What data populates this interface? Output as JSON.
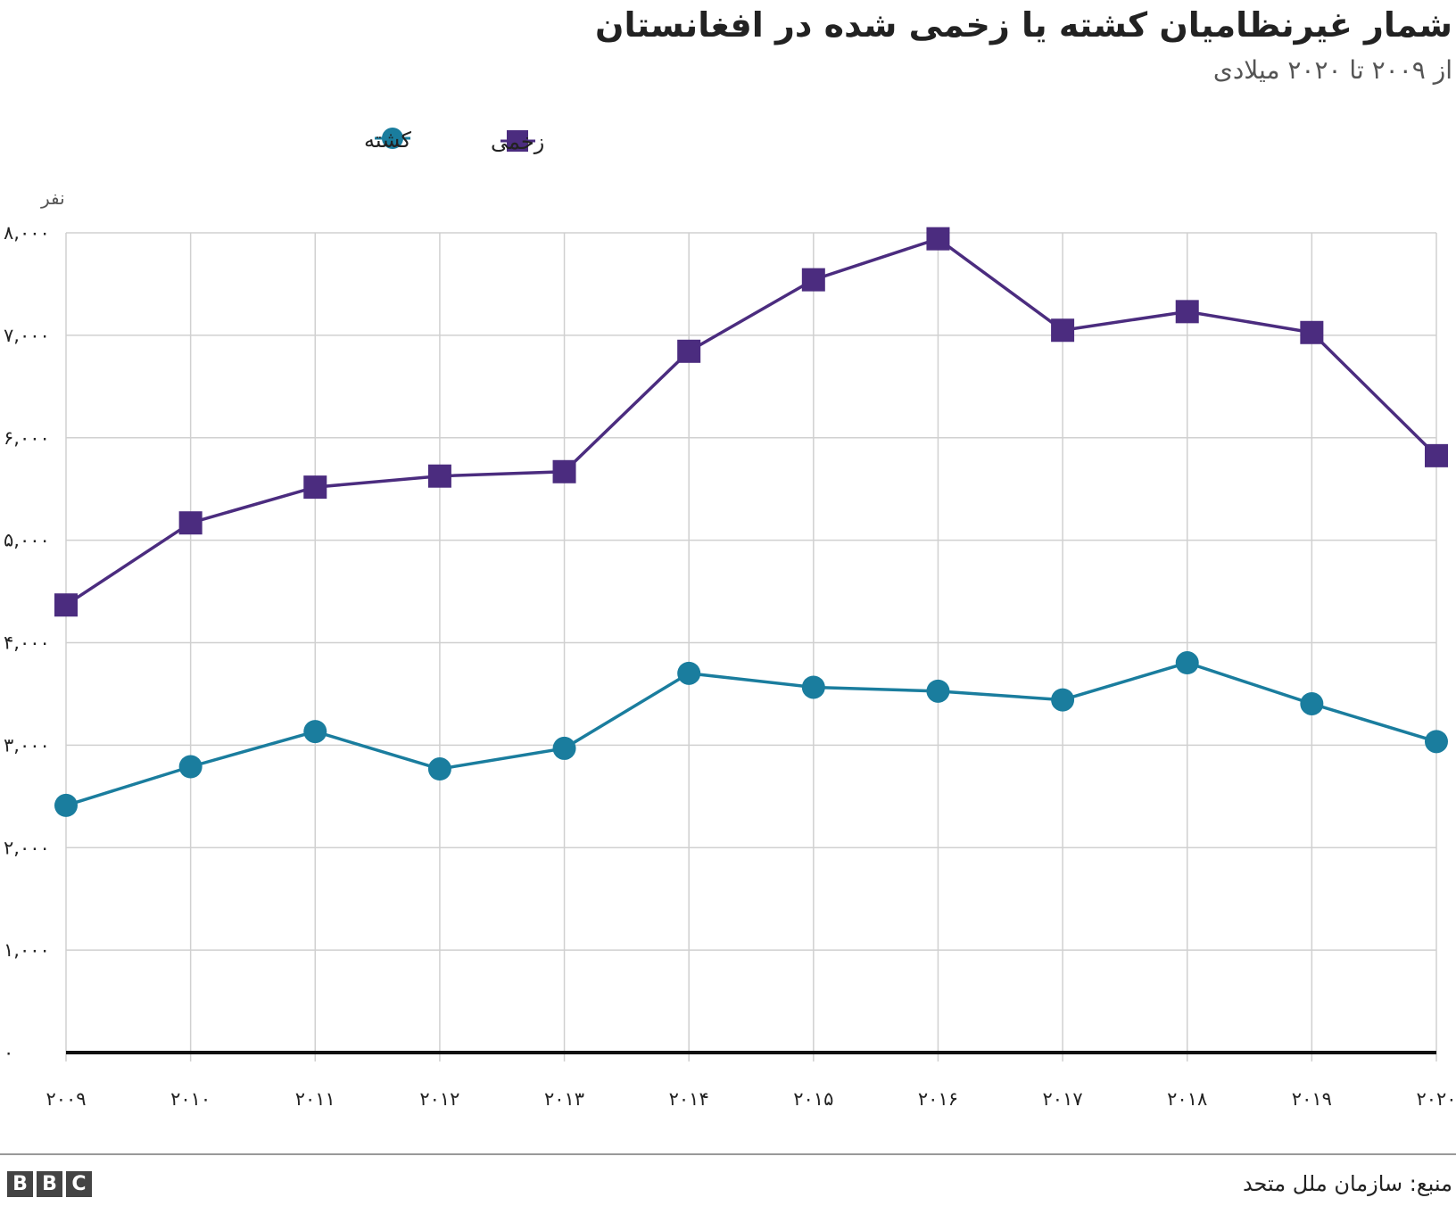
{
  "header": {
    "title": "شمار غیرنظامیان کشته یا زخمی شده در افغانستان",
    "subtitle": "از ۲۰۰۹ تا ۲۰۲۰ میلادی"
  },
  "footer": {
    "logo_letters": [
      "B",
      "B",
      "C"
    ],
    "source": "منبع: سازمان ملل متحد"
  },
  "colors": {
    "killed": "#1a7d9e",
    "injured": "#4b2c7f",
    "grid": "#d0d0d0",
    "axis": "#111111"
  },
  "chart_data": {
    "type": "line",
    "unit_label": "نفر",
    "x": [
      "2009",
      "2010",
      "2011",
      "2012",
      "2013",
      "2014",
      "2015",
      "2016",
      "2017",
      "2018",
      "2019",
      "2020"
    ],
    "x_tick_labels": [
      "۲۰۰۹",
      "۲۰۱۰",
      "۲۰۱۱",
      "۲۰۱۲",
      "۲۰۱۳",
      "۲۰۱۴",
      "۲۰۱۵",
      "۲۰۱۶",
      "۲۰۱۷",
      "۲۰۱۸",
      "۲۰۱۹",
      "۲۰۲۰"
    ],
    "y_ticks": [
      0,
      1000,
      2000,
      3000,
      4000,
      5000,
      6000,
      7000,
      8000
    ],
    "y_tick_labels": [
      "۰",
      "۱,۰۰۰",
      "۲,۰۰۰",
      "۳,۰۰۰",
      "۴,۰۰۰",
      "۵,۰۰۰",
      "۶,۰۰۰",
      "۷,۰۰۰",
      "۸,۰۰۰"
    ],
    "ylim": [
      0,
      8000
    ],
    "grid": true,
    "legend_position": "top-left",
    "series": [
      {
        "name": "زخمی",
        "key": "injured",
        "marker": "square",
        "values": [
          4368,
          5169,
          5518,
          5626,
          5669,
          6844,
          7542,
          7942,
          7049,
          7231,
          7027,
          5825
        ]
      },
      {
        "name": "کشته",
        "key": "killed",
        "marker": "circle",
        "values": [
          2412,
          2790,
          3133,
          2768,
          2969,
          3701,
          3565,
          3527,
          3442,
          3804,
          3404,
          3035
        ]
      }
    ]
  }
}
